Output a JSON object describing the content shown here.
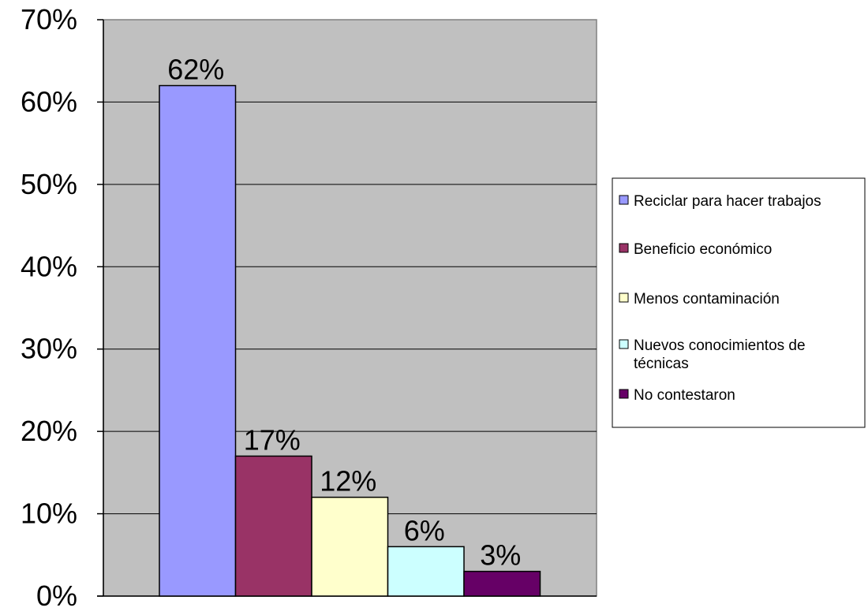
{
  "chart_data": {
    "type": "bar",
    "categories": [
      "Reciclar para hacer trabajos",
      "Beneficio económico",
      "Menos contaminación",
      "Nuevos conocimientos de técnicas",
      "No contestaron"
    ],
    "series": [
      {
        "values": [
          62,
          17,
          12,
          6,
          3
        ],
        "data_labels": [
          "62%",
          "17%",
          "12%",
          "6%",
          "3%"
        ]
      }
    ],
    "colors": [
      "#9999FF",
      "#993366",
      "#FFFFCC",
      "#CCFFFF",
      "#660066"
    ],
    "y_ticks": [
      0,
      10,
      20,
      30,
      40,
      50,
      60,
      70
    ],
    "y_tick_labels": [
      "0%",
      "10%",
      "20%",
      "30%",
      "40%",
      "50%",
      "60%",
      "70%"
    ],
    "ylim": [
      0,
      70
    ],
    "grid": true,
    "plot_background": "#C0C0C0",
    "legend": {
      "placement": "right",
      "entries": [
        [
          "Reciclar para hacer trabajos"
        ],
        [
          "Beneficio económico"
        ],
        [
          "Menos contaminación"
        ],
        [
          "Nuevos conocimientos de",
          "técnicas"
        ],
        [
          "No contestaron"
        ]
      ]
    }
  }
}
